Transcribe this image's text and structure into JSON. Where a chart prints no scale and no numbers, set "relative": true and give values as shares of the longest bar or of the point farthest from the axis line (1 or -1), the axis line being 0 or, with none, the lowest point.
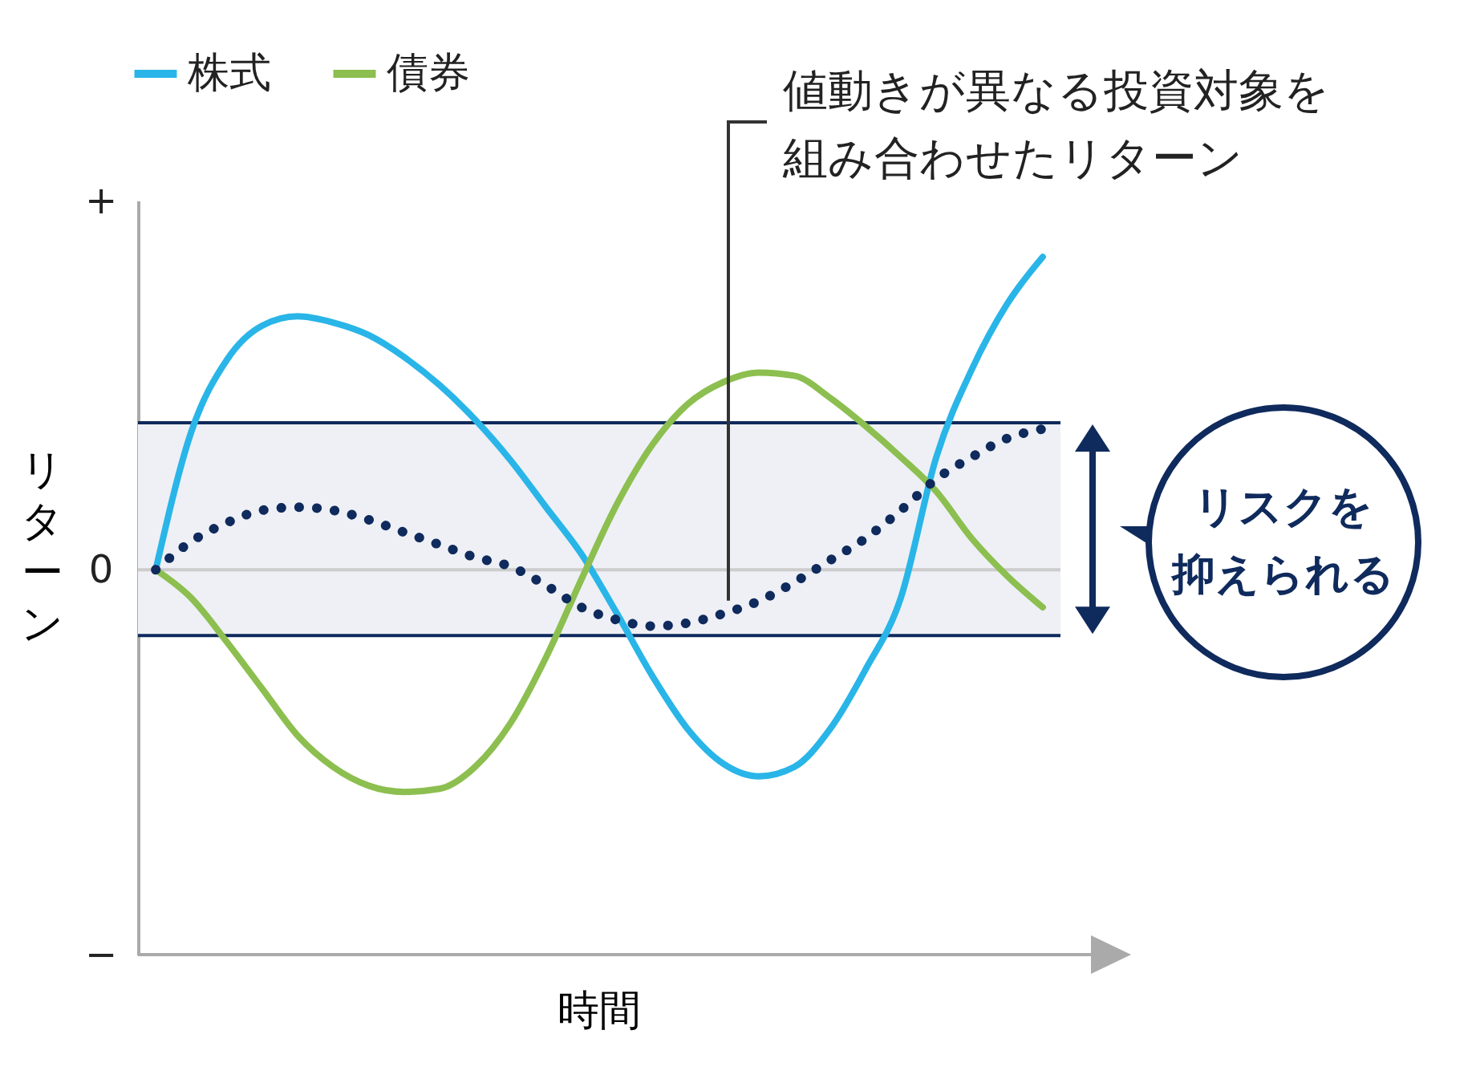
{
  "chart_data": {
    "type": "line",
    "relative": true,
    "xlabel": "時間",
    "ylabel": "リターン",
    "categories": [
      null,
      null,
      null,
      null,
      null,
      null,
      null,
      null,
      null,
      null,
      null,
      null,
      null,
      null,
      null,
      null,
      null,
      null,
      null,
      null,
      null,
      null,
      null,
      null,
      null,
      null
    ],
    "series": [
      {
        "name": "株式",
        "color": "#29b5e8",
        "values": [
          0,
          0.44,
          0.67,
          0.78,
          0.81,
          0.79,
          0.75,
          0.68,
          0.59,
          0.48,
          0.35,
          0.2,
          0.05,
          -0.14,
          -0.34,
          -0.51,
          -0.62,
          -0.66,
          -0.63,
          -0.51,
          -0.32,
          -0.09,
          0.36,
          0.64,
          0.85,
          1
        ]
      },
      {
        "name": "債券",
        "color": "#8cbf4f",
        "values": [
          0,
          -0.09,
          -0.23,
          -0.38,
          -0.53,
          -0.63,
          -0.69,
          -0.71,
          -0.7,
          -0.63,
          -0.49,
          -0.28,
          -0.03,
          0.21,
          0.4,
          0.53,
          0.6,
          0.63,
          0.62,
          0.55,
          0.46,
          0.36,
          0.25,
          0.1,
          -0.02,
          -0.12
        ]
      },
      {
        "color": "#0f2a5c",
        "line_style": "dotted",
        "values": [
          0,
          0.09,
          0.15,
          0.19,
          0.2,
          0.19,
          0.16,
          0.12,
          0.08,
          0.04,
          0.01,
          -0.05,
          -0.12,
          -0.16,
          -0.18,
          -0.17,
          -0.14,
          -0.1,
          -0.04,
          0.03,
          0.1,
          0.19,
          0.29,
          0.36,
          0.42,
          0.45
        ]
      }
    ],
    "bands": [
      {
        "axis": "y",
        "from": -0.21,
        "to": 0.47,
        "color": "#eef0f5"
      }
    ],
    "ref_lines": [
      {
        "axis": "y",
        "value": 0,
        "color": "#cccccc"
      },
      {
        "axis": "y",
        "value": -0.21,
        "color": "#0f2a5c"
      },
      {
        "axis": "y",
        "value": 0.47,
        "color": "#0f2a5c"
      }
    ],
    "legend": "top left",
    "annotations": [
      "値動きが異なる投資対象を組み合わせたリターン",
      "リスクを",
      "抑えられる",
      "+",
      "0",
      "−"
    ]
  }
}
